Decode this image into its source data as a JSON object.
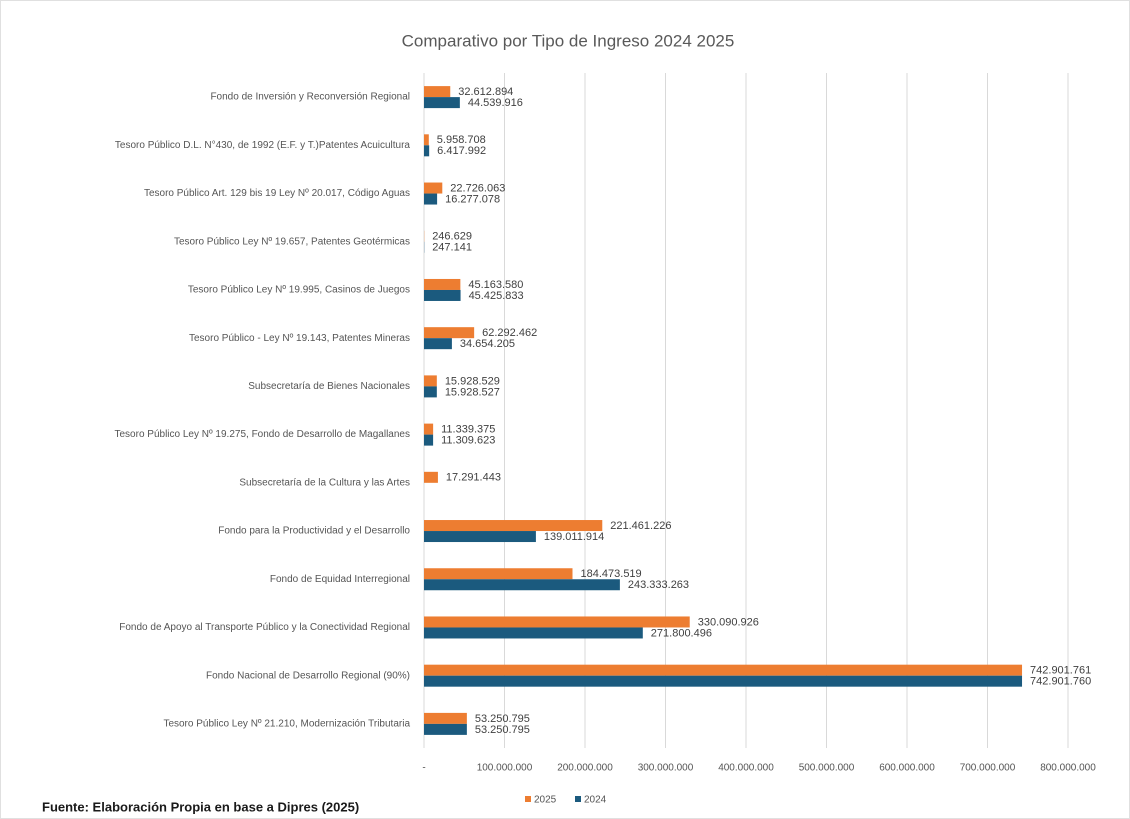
{
  "chart_data": {
    "type": "bar",
    "orientation": "horizontal",
    "title": "Comparativo por Tipo de Ingreso 2024 2025",
    "categories": [
      "Fondo de Inversión y Reconversión Regional",
      "Tesoro Público D.L. N°430, de 1992 (E.F. y T.)Patentes  Acuicultura",
      "Tesoro Público Art. 129 bis 19 Ley Nº 20.017, Código Aguas",
      "Tesoro Público Ley Nº 19.657, Patentes Geotérmicas",
      "Tesoro Público Ley Nº 19.995, Casinos de Juegos",
      "Tesoro Público - Ley Nº 19.143, Patentes Mineras",
      "Subsecretaría de Bienes Nacionales",
      "Tesoro Público Ley Nº 19.275, Fondo de Desarrollo de Magallanes",
      "Subsecretaría de la Cultura y las Artes",
      "Fondo para la Productividad y el Desarrollo",
      "Fondo de Equidad Interregional",
      "Fondo de Apoyo al Transporte Público y la Conectividad Regional",
      "Fondo Nacional de Desarrollo Regional (90%)",
      "Tesoro Público Ley Nº 21.210, Modernización Tributaria"
    ],
    "series": [
      {
        "name": "2025",
        "color": "#ed7d31",
        "values": [
          32612894,
          5958708,
          22726063,
          246629,
          45163580,
          62292462,
          15928529,
          11339375,
          17291443,
          221461226,
          184473519,
          330090926,
          742901761,
          53250795
        ],
        "value_labels": [
          "32.612.894",
          "5.958.708",
          "22.726.063",
          "246.629",
          "45.163.580",
          "62.292.462",
          "15.928.529",
          "11.339.375",
          "17.291.443",
          "221.461.226",
          "184.473.519",
          "330.090.926",
          "742.901.761",
          "53.250.795"
        ]
      },
      {
        "name": "2024",
        "color": "#1b5a7e",
        "values": [
          44539916,
          6417992,
          16277078,
          247141,
          45425833,
          34654205,
          15928527,
          11309623,
          null,
          139011914,
          243333263,
          271800496,
          742901760,
          53250795
        ],
        "value_labels": [
          "44.539.916",
          "6.417.992",
          "16.277.078",
          "247.141",
          "45.425.833",
          "34.654.205",
          "15.928.527",
          "11.309.623",
          null,
          "139.011.914",
          "243.333.263",
          "271.800.496",
          "742.901.760",
          "53.250.795"
        ]
      }
    ],
    "xlim": [
      0,
      800000000
    ],
    "xticks": [
      {
        "value": 0,
        "label": "-"
      },
      {
        "value": 100000000,
        "label": "100.000.000"
      },
      {
        "value": 200000000,
        "label": "200.000.000"
      },
      {
        "value": 300000000,
        "label": "300.000.000"
      },
      {
        "value": 400000000,
        "label": "400.000.000"
      },
      {
        "value": 500000000,
        "label": "500.000.000"
      },
      {
        "value": 600000000,
        "label": "600.000.000"
      },
      {
        "value": 700000000,
        "label": "700.000.000"
      },
      {
        "value": 800000000,
        "label": "800.000.000"
      }
    ],
    "grid": true,
    "legend": "bottom",
    "source": "Fuente: Elaboración Propia en base a Dipres (2025)"
  }
}
